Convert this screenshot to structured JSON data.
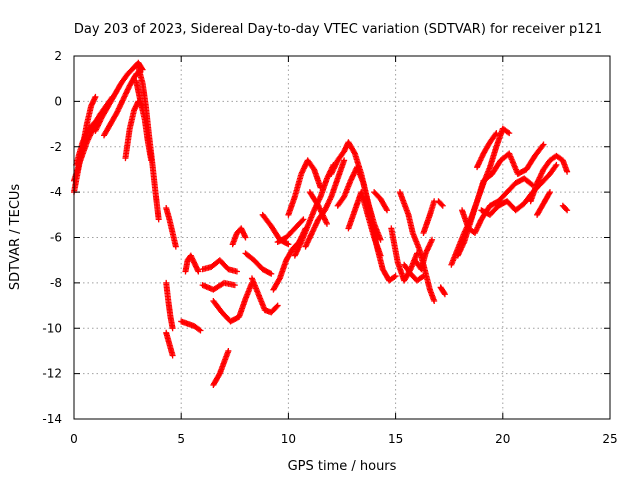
{
  "chart_data": {
    "type": "scatter",
    "title": "Day 203 of 2023, Sidereal Day-to-day VTEC variation (SDTVAR) for receiver p121",
    "xlabel": "GPS time / hours",
    "ylabel": "SDTVAR / TECUs",
    "xlim": [
      0,
      25
    ],
    "ylim": [
      -14,
      2
    ],
    "xticks": [
      0,
      5,
      10,
      15,
      20,
      25
    ],
    "yticks": [
      -14,
      -12,
      -10,
      -8,
      -6,
      -4,
      -2,
      0,
      2
    ],
    "grid": true,
    "marker": "+",
    "series": [
      {
        "color": "#ff0000",
        "segments": [
          [
            [
              0.0,
              -4.0
            ],
            [
              0.2,
              -3.0
            ],
            [
              0.4,
              -2.0
            ],
            [
              0.6,
              -1.0
            ],
            [
              0.8,
              -0.2
            ],
            [
              1.0,
              0.2
            ]
          ],
          [
            [
              0.0,
              -3.5
            ],
            [
              0.3,
              -2.6
            ],
            [
              0.6,
              -1.8
            ],
            [
              0.9,
              -1.2
            ],
            [
              1.2,
              -0.6
            ],
            [
              1.5,
              -0.2
            ],
            [
              1.8,
              0.2
            ]
          ],
          [
            [
              0.1,
              -2.8
            ],
            [
              0.4,
              -1.8
            ],
            [
              0.7,
              -1.2
            ],
            [
              1.0,
              -0.9
            ],
            [
              1.3,
              -0.5
            ]
          ],
          [
            [
              1.0,
              -1.3
            ],
            [
              1.3,
              -0.7
            ],
            [
              1.6,
              -0.2
            ],
            [
              1.9,
              0.3
            ],
            [
              2.2,
              0.8
            ],
            [
              2.5,
              1.2
            ],
            [
              2.8,
              1.5
            ],
            [
              3.0,
              1.7
            ],
            [
              3.2,
              1.4
            ]
          ],
          [
            [
              1.4,
              -1.5
            ],
            [
              1.7,
              -1.0
            ],
            [
              2.0,
              -0.5
            ],
            [
              2.3,
              0.1
            ],
            [
              2.6,
              0.7
            ],
            [
              2.9,
              1.2
            ],
            [
              3.1,
              1.3
            ]
          ],
          [
            [
              2.4,
              -2.5
            ],
            [
              2.6,
              -1.2
            ],
            [
              2.8,
              -0.4
            ],
            [
              3.0,
              0.0
            ],
            [
              3.2,
              -0.2
            ]
          ],
          [
            [
              3.0,
              1.5
            ],
            [
              3.2,
              0.8
            ],
            [
              3.35,
              -0.2
            ],
            [
              3.5,
              -1.5
            ],
            [
              3.65,
              -2.7
            ],
            [
              3.8,
              -4.0
            ],
            [
              3.95,
              -5.2
            ]
          ],
          [
            [
              2.9,
              0.9
            ],
            [
              3.1,
              0.0
            ],
            [
              3.3,
              -0.8
            ],
            [
              3.45,
              -1.8
            ],
            [
              3.6,
              -2.6
            ]
          ],
          [
            [
              4.3,
              -4.7
            ],
            [
              4.45,
              -5.2
            ],
            [
              4.6,
              -5.8
            ],
            [
              4.75,
              -6.4
            ]
          ],
          [
            [
              4.3,
              -8.0
            ],
            [
              4.4,
              -8.8
            ],
            [
              4.5,
              -9.5
            ],
            [
              4.6,
              -10.0
            ]
          ],
          [
            [
              4.3,
              -10.2
            ],
            [
              4.45,
              -10.7
            ],
            [
              4.6,
              -11.2
            ]
          ],
          [
            [
              5.0,
              -9.7
            ],
            [
              5.3,
              -9.8
            ],
            [
              5.6,
              -9.9
            ],
            [
              5.9,
              -10.1
            ]
          ],
          [
            [
              5.2,
              -7.5
            ],
            [
              5.3,
              -7.0
            ],
            [
              5.45,
              -6.8
            ],
            [
              5.6,
              -7.1
            ],
            [
              5.8,
              -7.5
            ]
          ],
          [
            [
              6.0,
              -7.4
            ],
            [
              6.4,
              -7.3
            ],
            [
              6.8,
              -7.0
            ],
            [
              7.2,
              -7.4
            ],
            [
              7.6,
              -7.5
            ]
          ],
          [
            [
              6.0,
              -8.1
            ],
            [
              6.5,
              -8.3
            ],
            [
              7.0,
              -8.0
            ],
            [
              7.5,
              -8.1
            ]
          ],
          [
            [
              6.5,
              -12.5
            ],
            [
              6.8,
              -12.0
            ],
            [
              7.0,
              -11.5
            ],
            [
              7.2,
              -11.0
            ]
          ],
          [
            [
              6.5,
              -8.8
            ],
            [
              6.9,
              -9.3
            ],
            [
              7.3,
              -9.7
            ],
            [
              7.7,
              -9.5
            ],
            [
              8.0,
              -8.7
            ],
            [
              8.3,
              -8.0
            ]
          ],
          [
            [
              7.4,
              -6.3
            ],
            [
              7.6,
              -5.8
            ],
            [
              7.8,
              -5.6
            ],
            [
              8.0,
              -6.0
            ]
          ],
          [
            [
              8.0,
              -6.7
            ],
            [
              8.4,
              -7.0
            ],
            [
              8.8,
              -7.4
            ],
            [
              9.2,
              -7.6
            ]
          ],
          [
            [
              8.3,
              -7.8
            ],
            [
              8.6,
              -8.5
            ],
            [
              8.9,
              -9.2
            ],
            [
              9.2,
              -9.3
            ],
            [
              9.5,
              -9.0
            ]
          ],
          [
            [
              8.8,
              -5.0
            ],
            [
              9.2,
              -5.5
            ],
            [
              9.6,
              -6.1
            ],
            [
              10.0,
              -6.3
            ]
          ],
          [
            [
              9.3,
              -8.3
            ],
            [
              9.6,
              -7.8
            ],
            [
              9.9,
              -7.0
            ],
            [
              10.2,
              -6.5
            ],
            [
              10.5,
              -6.2
            ],
            [
              10.8,
              -5.6
            ]
          ],
          [
            [
              9.5,
              -6.2
            ],
            [
              9.9,
              -6.0
            ],
            [
              10.3,
              -5.6
            ],
            [
              10.7,
              -5.2
            ]
          ],
          [
            [
              10.0,
              -5.0
            ],
            [
              10.3,
              -4.2
            ],
            [
              10.6,
              -3.2
            ],
            [
              10.9,
              -2.6
            ],
            [
              11.2,
              -3.0
            ],
            [
              11.5,
              -3.8
            ]
          ],
          [
            [
              10.3,
              -6.8
            ],
            [
              10.6,
              -6.2
            ],
            [
              10.9,
              -5.5
            ],
            [
              11.2,
              -4.8
            ],
            [
              11.5,
              -4.2
            ],
            [
              11.8,
              -3.4
            ],
            [
              12.1,
              -2.8
            ]
          ],
          [
            [
              10.8,
              -6.4
            ],
            [
              11.1,
              -5.8
            ],
            [
              11.4,
              -5.2
            ],
            [
              11.7,
              -4.8
            ],
            [
              12.0,
              -4.2
            ],
            [
              12.3,
              -3.4
            ],
            [
              12.6,
              -2.6
            ]
          ],
          [
            [
              11.0,
              -4.0
            ],
            [
              11.4,
              -4.6
            ],
            [
              11.8,
              -5.4
            ]
          ],
          [
            [
              12.0,
              -3.2
            ],
            [
              12.3,
              -2.6
            ],
            [
              12.6,
              -2.2
            ],
            [
              12.8,
              -1.8
            ],
            [
              13.1,
              -2.3
            ],
            [
              13.4,
              -3.2
            ],
            [
              13.7,
              -4.4
            ],
            [
              14.0,
              -5.4
            ],
            [
              14.3,
              -6.1
            ]
          ],
          [
            [
              12.3,
              -4.6
            ],
            [
              12.6,
              -4.2
            ],
            [
              12.9,
              -3.5
            ],
            [
              13.2,
              -2.9
            ],
            [
              13.5,
              -3.6
            ],
            [
              13.8,
              -4.8
            ],
            [
              14.1,
              -6.3
            ],
            [
              14.4,
              -7.4
            ],
            [
              14.7,
              -7.9
            ],
            [
              15.0,
              -7.7
            ]
          ],
          [
            [
              12.8,
              -5.6
            ],
            [
              13.1,
              -4.8
            ],
            [
              13.4,
              -4.0
            ],
            [
              13.7,
              -5.0
            ],
            [
              14.0,
              -6.0
            ],
            [
              14.3,
              -6.8
            ]
          ],
          [
            [
              14.0,
              -4.0
            ],
            [
              14.3,
              -4.3
            ],
            [
              14.6,
              -4.8
            ]
          ],
          [
            [
              14.8,
              -5.6
            ],
            [
              15.1,
              -7.1
            ],
            [
              15.4,
              -7.9
            ],
            [
              15.7,
              -7.4
            ],
            [
              16.0,
              -6.7
            ]
          ],
          [
            [
              15.2,
              -4.0
            ],
            [
              15.4,
              -4.5
            ],
            [
              15.6,
              -5.0
            ],
            [
              15.8,
              -5.8
            ],
            [
              16.1,
              -6.5
            ],
            [
              16.3,
              -7.2
            ],
            [
              16.6,
              -8.3
            ],
            [
              16.8,
              -8.8
            ]
          ],
          [
            [
              15.4,
              -7.2
            ],
            [
              15.7,
              -7.6
            ],
            [
              16.0,
              -7.9
            ],
            [
              16.3,
              -7.7
            ]
          ],
          [
            [
              15.9,
              -7.0
            ],
            [
              16.2,
              -7.4
            ],
            [
              16.4,
              -6.7
            ],
            [
              16.7,
              -6.1
            ]
          ],
          [
            [
              16.3,
              -5.8
            ],
            [
              16.6,
              -5.0
            ],
            [
              16.8,
              -4.4
            ]
          ],
          [
            [
              17.0,
              -4.4
            ],
            [
              17.2,
              -4.6
            ]
          ],
          [
            [
              17.1,
              -8.2
            ],
            [
              17.3,
              -8.5
            ]
          ],
          [
            [
              17.6,
              -7.2
            ],
            [
              17.9,
              -6.5
            ],
            [
              18.2,
              -5.8
            ],
            [
              18.5,
              -5.2
            ],
            [
              18.8,
              -4.4
            ],
            [
              19.1,
              -3.6
            ],
            [
              19.4,
              -2.9
            ],
            [
              19.7,
              -2.0
            ],
            [
              20.0,
              -1.2
            ],
            [
              20.3,
              -1.4
            ]
          ],
          [
            [
              17.9,
              -6.8
            ],
            [
              18.2,
              -6.2
            ],
            [
              18.5,
              -5.3
            ],
            [
              18.8,
              -4.4
            ],
            [
              19.1,
              -3.5
            ],
            [
              19.5,
              -3.2
            ],
            [
              19.9,
              -2.6
            ],
            [
              20.3,
              -2.3
            ],
            [
              20.7,
              -3.2
            ],
            [
              21.1,
              -3.0
            ],
            [
              21.5,
              -2.4
            ],
            [
              21.9,
              -1.9
            ]
          ],
          [
            [
              18.1,
              -4.8
            ],
            [
              18.4,
              -5.6
            ],
            [
              18.7,
              -5.8
            ],
            [
              19.0,
              -5.2
            ],
            [
              19.4,
              -4.6
            ],
            [
              19.8,
              -4.4
            ],
            [
              20.2,
              -4.0
            ],
            [
              20.6,
              -3.6
            ],
            [
              21.0,
              -3.4
            ],
            [
              21.4,
              -3.7
            ]
          ],
          [
            [
              18.8,
              -2.9
            ],
            [
              19.1,
              -2.3
            ],
            [
              19.4,
              -1.8
            ],
            [
              19.7,
              -1.4
            ]
          ],
          [
            [
              19.0,
              -4.8
            ],
            [
              19.4,
              -5.0
            ],
            [
              19.8,
              -4.6
            ],
            [
              20.2,
              -4.4
            ],
            [
              20.6,
              -4.8
            ],
            [
              21.0,
              -4.5
            ],
            [
              21.4,
              -4.0
            ],
            [
              21.8,
              -3.6
            ],
            [
              22.2,
              -3.2
            ],
            [
              22.5,
              -2.8
            ]
          ],
          [
            [
              21.3,
              -4.4
            ],
            [
              21.6,
              -3.6
            ],
            [
              21.9,
              -3.0
            ],
            [
              22.2,
              -2.6
            ],
            [
              22.5,
              -2.4
            ],
            [
              22.8,
              -2.6
            ],
            [
              23.0,
              -3.1
            ]
          ],
          [
            [
              21.6,
              -5.0
            ],
            [
              21.9,
              -4.5
            ],
            [
              22.2,
              -4.0
            ]
          ],
          [
            [
              22.8,
              -4.6
            ],
            [
              23.0,
              -4.8
            ]
          ]
        ]
      }
    ]
  }
}
